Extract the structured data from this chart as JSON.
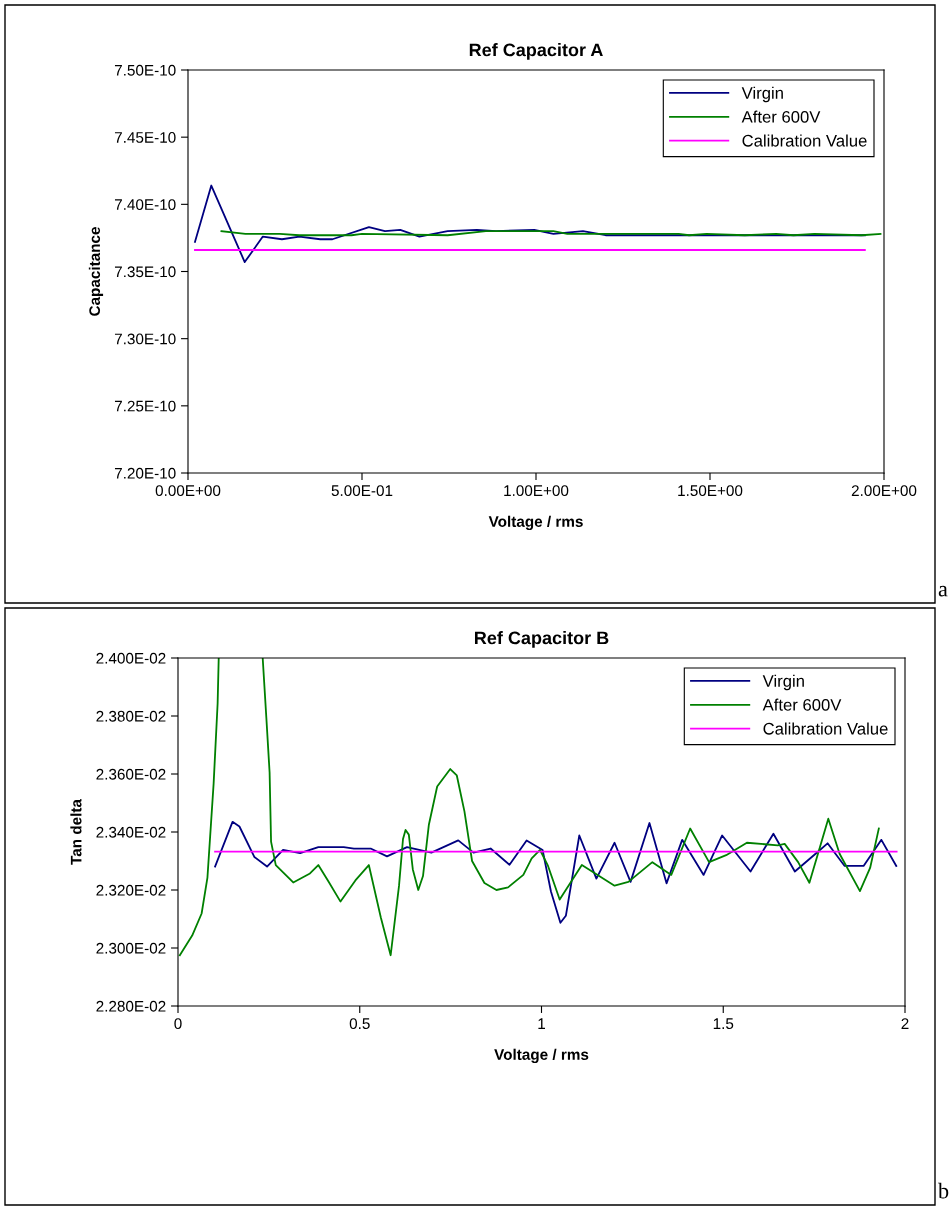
{
  "chart_data": [
    {
      "type": "line",
      "title": "Ref Capacitor A",
      "xlabel": "Voltage / rms",
      "ylabel": "Capacitance",
      "xlim": [
        0,
        2.0
      ],
      "xticks": [
        {
          "value": 0,
          "label": "0.00E+00"
        },
        {
          "value": 0.5,
          "label": "5.00E-01"
        },
        {
          "value": 1.0,
          "label": "1.00E+00"
        },
        {
          "value": 1.5,
          "label": "1.50E+00"
        },
        {
          "value": 2.0,
          "label": "2.00E+00"
        }
      ],
      "ylim": [
        7.2e-10,
        7.5e-10
      ],
      "yticks": [
        {
          "value": 7.2e-10,
          "label": "7.20E-10"
        },
        {
          "value": 7.25e-10,
          "label": "7.25E-10"
        },
        {
          "value": 7.3e-10,
          "label": "7.30E-10"
        },
        {
          "value": 7.35e-10,
          "label": "7.35E-10"
        },
        {
          "value": 7.4e-10,
          "label": "7.40E-10"
        },
        {
          "value": 7.45e-10,
          "label": "7.45E-10"
        },
        {
          "value": 7.5e-10,
          "label": "7.50E-10"
        }
      ],
      "grid": false,
      "legend": "top right",
      "annotations": [
        "a"
      ],
      "series": [
        {
          "name": "Virgin",
          "color": "#000080",
          "x": [
            0.02,
            0.067,
            0.163,
            0.215,
            0.27,
            0.32,
            0.38,
            0.415,
            0.52,
            0.566,
            0.61,
            0.665,
            0.746,
            0.83,
            0.885,
            0.995,
            1.05,
            1.135,
            1.2,
            1.945
          ],
          "values": [
            7.372e-10,
            7.414e-10,
            7.357e-10,
            7.376e-10,
            7.374e-10,
            7.376e-10,
            7.374e-10,
            7.374e-10,
            7.383e-10,
            7.38e-10,
            7.381e-10,
            7.376e-10,
            7.38e-10,
            7.381e-10,
            7.38e-10,
            7.381e-10,
            7.378e-10,
            7.38e-10,
            7.377e-10,
            7.377e-10
          ]
        },
        {
          "name": "After 600V",
          "color": "#008000",
          "x": [
            0.096,
            0.165,
            0.264,
            0.32,
            0.47,
            0.5,
            0.746,
            0.856,
            1.05,
            1.09,
            1.41,
            1.44,
            1.49,
            1.6,
            1.69,
            1.74,
            1.8,
            1.935,
            1.99
          ],
          "values": [
            7.38e-10,
            7.378e-10,
            7.378e-10,
            7.377e-10,
            7.377e-10,
            7.378e-10,
            7.377e-10,
            7.38e-10,
            7.38e-10,
            7.378e-10,
            7.378e-10,
            7.377e-10,
            7.378e-10,
            7.377e-10,
            7.378e-10,
            7.377e-10,
            7.378e-10,
            7.377e-10,
            7.378e-10
          ]
        },
        {
          "name": "Calibration Value",
          "color": "#ff00ff",
          "x": [
            0.02,
            1.945
          ],
          "values": [
            7.366e-10,
            7.366e-10
          ]
        }
      ]
    },
    {
      "type": "line",
      "title": "Ref Capacitor B",
      "xlabel": "Voltage / rms",
      "ylabel": "Tan delta",
      "xlim": [
        0,
        2
      ],
      "xticks": [
        0,
        0.5,
        1,
        1.5,
        2
      ],
      "ylim": [
        0.0228,
        0.024
      ],
      "yticks": [
        {
          "value": 0.0228,
          "label": "2.280E-02"
        },
        {
          "value": 0.023,
          "label": "2.300E-02"
        },
        {
          "value": 0.0232,
          "label": "2.320E-02"
        },
        {
          "value": 0.0234,
          "label": "2.340E-02"
        },
        {
          "value": 0.0236,
          "label": "2.360E-02"
        },
        {
          "value": 0.0238,
          "label": "2.380E-02"
        },
        {
          "value": 0.024,
          "label": "2.400E-02"
        }
      ],
      "grid": false,
      "legend": "top right",
      "annotations": [
        "b"
      ],
      "series": [
        {
          "name": "Virgin",
          "color": "#000080",
          "x": [
            0.102,
            0.15,
            0.169,
            0.21,
            0.245,
            0.289,
            0.336,
            0.386,
            0.456,
            0.484,
            0.53,
            0.575,
            0.63,
            0.697,
            0.771,
            0.813,
            0.86,
            0.912,
            0.959,
            1.003,
            1.026,
            1.052,
            1.067,
            1.104,
            1.151,
            1.201,
            1.245,
            1.297,
            1.344,
            1.387,
            1.446,
            1.497,
            1.575,
            1.638,
            1.697,
            1.754,
            1.787,
            1.834,
            1.886,
            1.935,
            1.976
          ],
          "values": [
            0.023281,
            0.023435,
            0.023419,
            0.023314,
            0.023281,
            0.023338,
            0.023327,
            0.023348,
            0.023348,
            0.023343,
            0.023343,
            0.023316,
            0.023348,
            0.023329,
            0.023371,
            0.023329,
            0.023343,
            0.023287,
            0.023371,
            0.023338,
            0.023195,
            0.023087,
            0.023111,
            0.023388,
            0.023239,
            0.023363,
            0.023228,
            0.023431,
            0.023223,
            0.023373,
            0.023252,
            0.023388,
            0.023264,
            0.023394,
            0.023264,
            0.023325,
            0.023361,
            0.023283,
            0.023283,
            0.023373,
            0.023283
          ]
        },
        {
          "name": "After 600V",
          "color": "#008000",
          "x": [
            0.005,
            0.039,
            0.065,
            0.081,
            0.098,
            0.109,
            0.112,
            0.17,
            0.233,
            0.243,
            0.252,
            0.256,
            0.269,
            0.317,
            0.363,
            0.386,
            0.414,
            0.447,
            0.488,
            0.525,
            0.558,
            0.585,
            0.608,
            0.619,
            0.626,
            0.635,
            0.646,
            0.661,
            0.674,
            0.69,
            0.713,
            0.749,
            0.767,
            0.788,
            0.809,
            0.843,
            0.876,
            0.908,
            0.95,
            0.973,
            0.996,
            1.017,
            1.05,
            1.111,
            1.201,
            1.239,
            1.305,
            1.357,
            1.409,
            1.461,
            1.508,
            1.565,
            1.65,
            1.669,
            1.706,
            1.737,
            1.789,
            1.82,
            1.876,
            1.904,
            1.928
          ],
          "values": [
            0.022975,
            0.023043,
            0.023119,
            0.023243,
            0.023567,
            0.023843,
            0.024,
            null,
            0.024,
            0.023795,
            0.023605,
            0.023367,
            0.023286,
            0.023226,
            0.023257,
            0.023286,
            0.023229,
            0.02316,
            0.023233,
            0.023286,
            0.023105,
            0.022975,
            0.023214,
            0.023376,
            0.023407,
            0.023391,
            0.023271,
            0.0232,
            0.023248,
            0.023424,
            0.023557,
            0.023617,
            0.023595,
            0.023471,
            0.0233,
            0.023224,
            0.0232,
            0.023209,
            0.023252,
            0.023309,
            0.023338,
            0.023286,
            0.023167,
            0.023286,
            0.023215,
            0.023228,
            0.023296,
            0.023252,
            0.023412,
            0.023296,
            0.02332,
            0.023363,
            0.023354,
            0.023359,
            0.023296,
            0.023225,
            0.023446,
            0.023325,
            0.023196,
            0.023276,
            0.023412
          ]
        },
        {
          "name": "Calibration Value",
          "color": "#ff00ff",
          "x": [
            0.102,
            1.977
          ],
          "values": [
            0.023332,
            0.023332
          ]
        }
      ]
    }
  ]
}
